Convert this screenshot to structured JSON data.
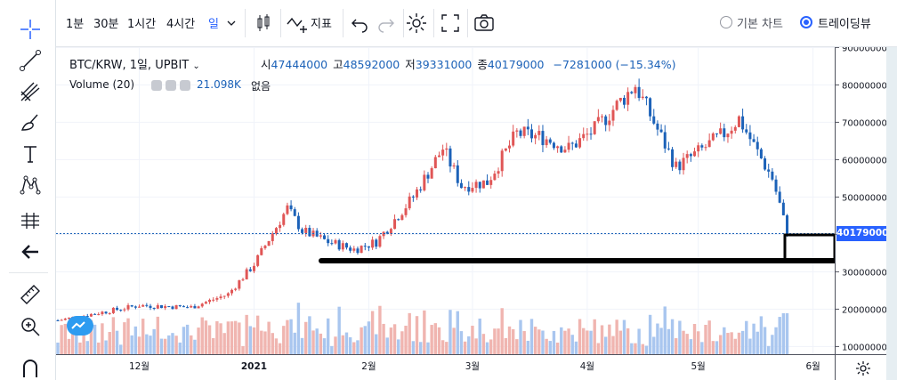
{
  "toolbar": {
    "intervals": [
      "1분",
      "30분",
      "1시간",
      "4시간",
      "일"
    ],
    "active_interval": "일",
    "indicators_label": "지표",
    "chart_modes": [
      "기본 차트",
      "트레이딩뷰"
    ],
    "selected_mode": "트레이딩뷰"
  },
  "legend": {
    "symbol": "BTC/KRW, 1일, UPBIT",
    "open_label": "시",
    "open": "47444000",
    "high_label": "고",
    "high": "48592000",
    "low_label": "저",
    "low": "39331000",
    "close_label": "종",
    "close": "40179000",
    "change": "−7281000 (−15.34%)"
  },
  "volume_legend": {
    "label": "Volume (20)",
    "value": "21.098K",
    "extra": "없음"
  },
  "last_price_tag": "40179000",
  "colors": {
    "up": "#e05656",
    "down": "#1c62b8",
    "vol_up": "#f0b5b0",
    "vol_down": "#a9c6ef",
    "accent": "#2962ff"
  },
  "chart_data": {
    "type": "candlestick",
    "price_axis_ticks": [
      "90000000",
      "80000000",
      "70000000",
      "60000000",
      "50000000",
      "40000000",
      "30000000",
      "20000000",
      "10000000"
    ],
    "time_axis_ticks": [
      "12월",
      "2021",
      "2월",
      "3월",
      "4월",
      "5월",
      "6월"
    ],
    "last_price": 40179000,
    "close_path": [
      [
        "11/09",
        17000000
      ],
      [
        "11/20",
        19000000
      ],
      [
        "12/01",
        21000000
      ],
      [
        "12/15",
        20500000
      ],
      [
        "12/25",
        24000000
      ],
      [
        "01/01",
        32000000
      ],
      [
        "01/07",
        42000000
      ],
      [
        "01/10",
        47000000
      ],
      [
        "01/14",
        41000000
      ],
      [
        "01/21",
        38000000
      ],
      [
        "01/28",
        36000000
      ],
      [
        "02/03",
        38000000
      ],
      [
        "02/08",
        44000000
      ],
      [
        "02/13",
        50000000
      ],
      [
        "02/21",
        63000000
      ],
      [
        "02/26",
        53000000
      ],
      [
        "03/05",
        54000000
      ],
      [
        "03/13",
        67000000
      ],
      [
        "03/20",
        66000000
      ],
      [
        "03/27",
        63000000
      ],
      [
        "04/03",
        68000000
      ],
      [
        "04/14",
        80000000
      ],
      [
        "04/18",
        72000000
      ],
      [
        "04/25",
        58000000
      ],
      [
        "05/01",
        62000000
      ],
      [
        "05/08",
        67000000
      ],
      [
        "05/12",
        71000000
      ],
      [
        "05/17",
        62000000
      ],
      [
        "05/21",
        55000000
      ],
      [
        "05/23",
        48000000
      ],
      [
        "05/25",
        40179000
      ]
    ],
    "volume_axis": "shared price axis, bars in lower band",
    "annotations": [
      "horizontal support line at ~32000000",
      "rectangle box from ~40000000 to ~33000000"
    ]
  }
}
